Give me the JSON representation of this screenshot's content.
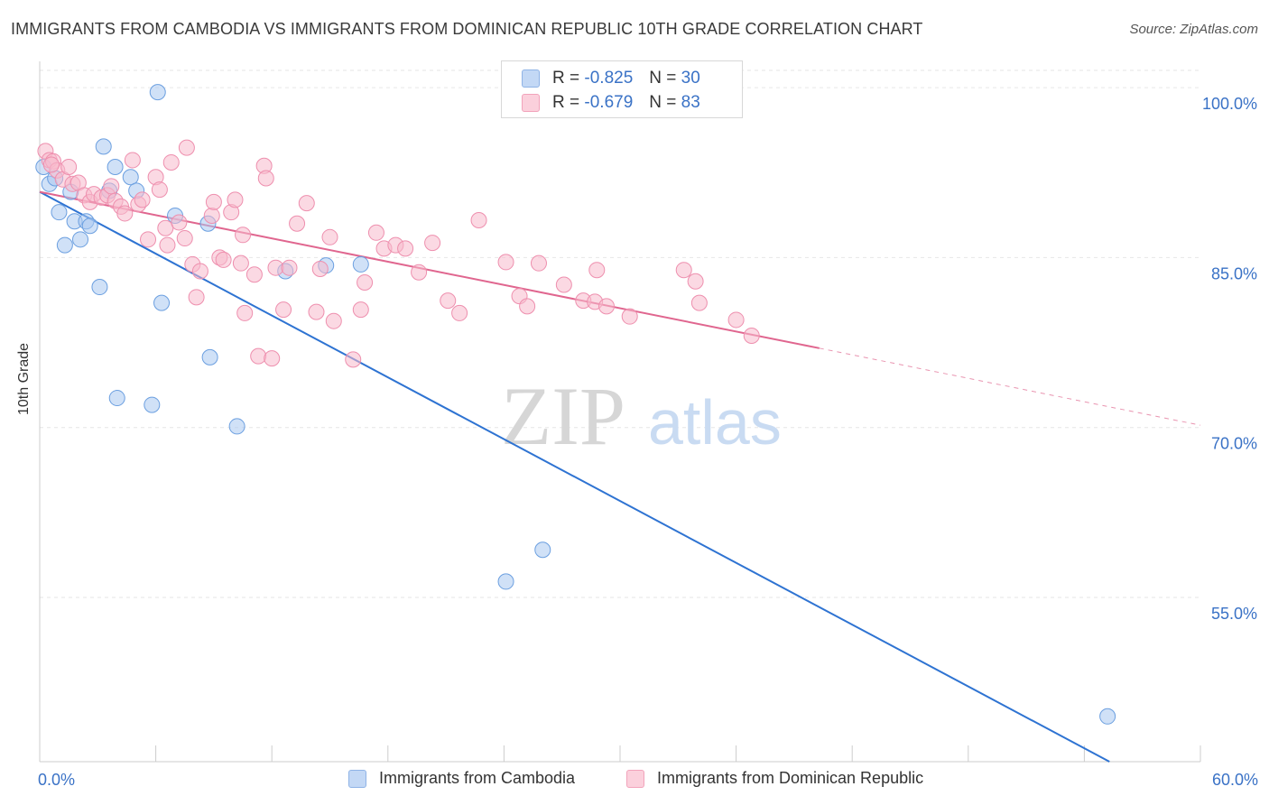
{
  "header": {
    "title": "IMMIGRANTS FROM CAMBODIA VS IMMIGRANTS FROM DOMINICAN REPUBLIC 10TH GRADE CORRELATION CHART",
    "source": "Source: ZipAtlas.com"
  },
  "watermark": {
    "zip": "ZIP",
    "atlas": "atlas"
  },
  "legend_top": {
    "series": [
      {
        "r_label": "R = ",
        "r_value": "-0.825",
        "n_label": "N = ",
        "n_value": "30",
        "color": "#a9c8f0"
      },
      {
        "r_label": "R = ",
        "r_value": "-0.679",
        "n_label": "N = ",
        "n_value": "83",
        "color": "#f7b9cc"
      }
    ]
  },
  "chart_data": {
    "type": "scatter",
    "title": "IMMIGRANTS FROM CAMBODIA VS IMMIGRANTS FROM DOMINICAN REPUBLIC 10TH GRADE CORRELATION CHART",
    "xlabel": "",
    "ylabel": "10th Grade",
    "xlim": [
      0,
      60
    ],
    "ylim": [
      40.5,
      102
    ],
    "x_tick_labels": [
      "0.0%",
      "60.0%"
    ],
    "y_ticks": [
      55,
      70,
      85,
      100
    ],
    "y_tick_labels": [
      "55.0%",
      "70.0%",
      "85.0%",
      "100.0%"
    ],
    "grid": true,
    "legend_position": "bottom",
    "series": [
      {
        "name": "Immigrants from Cambodia",
        "color": "#a9c8f0",
        "stroke": "#6b9fe0",
        "line_color": "#2e73d2",
        "trend": {
          "x0": 0,
          "y0": 90.8,
          "x1": 55.3,
          "y1": 40.5
        },
        "points": [
          [
            0.2,
            93.0
          ],
          [
            0.5,
            91.5
          ],
          [
            0.8,
            92.0
          ],
          [
            1.0,
            89.0
          ],
          [
            1.3,
            86.1
          ],
          [
            1.6,
            90.8
          ],
          [
            1.8,
            88.2
          ],
          [
            2.1,
            86.6
          ],
          [
            2.4,
            88.2
          ],
          [
            2.6,
            87.8
          ],
          [
            3.1,
            82.4
          ],
          [
            3.3,
            94.8
          ],
          [
            3.6,
            90.9
          ],
          [
            3.9,
            93.0
          ],
          [
            4.0,
            72.6
          ],
          [
            4.7,
            92.1
          ],
          [
            5.0,
            90.9
          ],
          [
            5.8,
            72.0
          ],
          [
            6.1,
            99.6
          ],
          [
            6.3,
            81.0
          ],
          [
            7.0,
            88.7
          ],
          [
            8.8,
            76.2
          ],
          [
            8.7,
            88.0
          ],
          [
            10.2,
            70.1
          ],
          [
            12.7,
            83.8
          ],
          [
            14.8,
            84.3
          ],
          [
            16.6,
            84.4
          ],
          [
            24.1,
            56.4
          ],
          [
            26.0,
            59.2
          ],
          [
            55.2,
            44.5
          ]
        ]
      },
      {
        "name": "Immigrants from Dominican Republic",
        "color": "#f7b9cc",
        "stroke": "#ee8fae",
        "line_color": "#e0668f",
        "trend": {
          "x0": 0,
          "y0": 90.8,
          "x1": 40.3,
          "y1": 77.0
        },
        "trend_dashed": {
          "x0": 40.3,
          "y0": 77.0,
          "x1": 60,
          "y1": 70.2
        },
        "points": [
          [
            0.3,
            94.4
          ],
          [
            0.5,
            93.6
          ],
          [
            0.7,
            93.5
          ],
          [
            0.9,
            92.7
          ],
          [
            1.2,
            91.9
          ],
          [
            1.5,
            93.0
          ],
          [
            1.7,
            91.5
          ],
          [
            2.0,
            91.6
          ],
          [
            2.3,
            90.5
          ],
          [
            2.6,
            89.9
          ],
          [
            2.8,
            90.6
          ],
          [
            3.2,
            90.3
          ],
          [
            3.5,
            90.5
          ],
          [
            3.7,
            91.3
          ],
          [
            3.9,
            90.0
          ],
          [
            4.2,
            89.5
          ],
          [
            4.4,
            88.9
          ],
          [
            4.8,
            93.6
          ],
          [
            5.1,
            89.7
          ],
          [
            5.3,
            90.1
          ],
          [
            5.6,
            86.6
          ],
          [
            6.0,
            92.1
          ],
          [
            6.2,
            91.0
          ],
          [
            6.5,
            87.6
          ],
          [
            6.6,
            86.1
          ],
          [
            6.8,
            93.4
          ],
          [
            7.2,
            88.1
          ],
          [
            7.5,
            86.7
          ],
          [
            7.6,
            94.7
          ],
          [
            7.9,
            84.4
          ],
          [
            8.1,
            81.5
          ],
          [
            8.3,
            83.8
          ],
          [
            8.9,
            88.7
          ],
          [
            9.0,
            89.9
          ],
          [
            9.3,
            85.0
          ],
          [
            9.5,
            84.8
          ],
          [
            9.9,
            89.0
          ],
          [
            10.1,
            90.1
          ],
          [
            10.4,
            84.5
          ],
          [
            10.5,
            87.0
          ],
          [
            10.6,
            80.1
          ],
          [
            11.1,
            83.5
          ],
          [
            11.3,
            76.3
          ],
          [
            11.6,
            93.1
          ],
          [
            11.7,
            92.0
          ],
          [
            12.0,
            76.1
          ],
          [
            12.2,
            84.1
          ],
          [
            12.6,
            80.4
          ],
          [
            12.9,
            84.1
          ],
          [
            13.3,
            88.0
          ],
          [
            13.8,
            89.8
          ],
          [
            14.3,
            80.2
          ],
          [
            14.5,
            84.0
          ],
          [
            15.0,
            86.8
          ],
          [
            15.2,
            79.4
          ],
          [
            16.2,
            76.0
          ],
          [
            16.6,
            80.4
          ],
          [
            16.8,
            82.8
          ],
          [
            17.4,
            87.2
          ],
          [
            17.8,
            85.8
          ],
          [
            18.4,
            86.1
          ],
          [
            18.9,
            85.8
          ],
          [
            19.6,
            83.7
          ],
          [
            20.3,
            86.3
          ],
          [
            21.1,
            81.2
          ],
          [
            21.7,
            80.1
          ],
          [
            22.7,
            88.3
          ],
          [
            24.1,
            84.6
          ],
          [
            24.8,
            81.6
          ],
          [
            25.2,
            80.7
          ],
          [
            25.8,
            84.5
          ],
          [
            27.1,
            82.6
          ],
          [
            28.1,
            81.2
          ],
          [
            28.7,
            81.1
          ],
          [
            28.8,
            83.9
          ],
          [
            29.3,
            80.7
          ],
          [
            30.5,
            79.8
          ],
          [
            33.3,
            83.9
          ],
          [
            33.9,
            82.9
          ],
          [
            34.1,
            81.0
          ],
          [
            36.0,
            79.5
          ],
          [
            36.8,
            78.1
          ],
          [
            0.6,
            93.2
          ]
        ]
      }
    ]
  }
}
